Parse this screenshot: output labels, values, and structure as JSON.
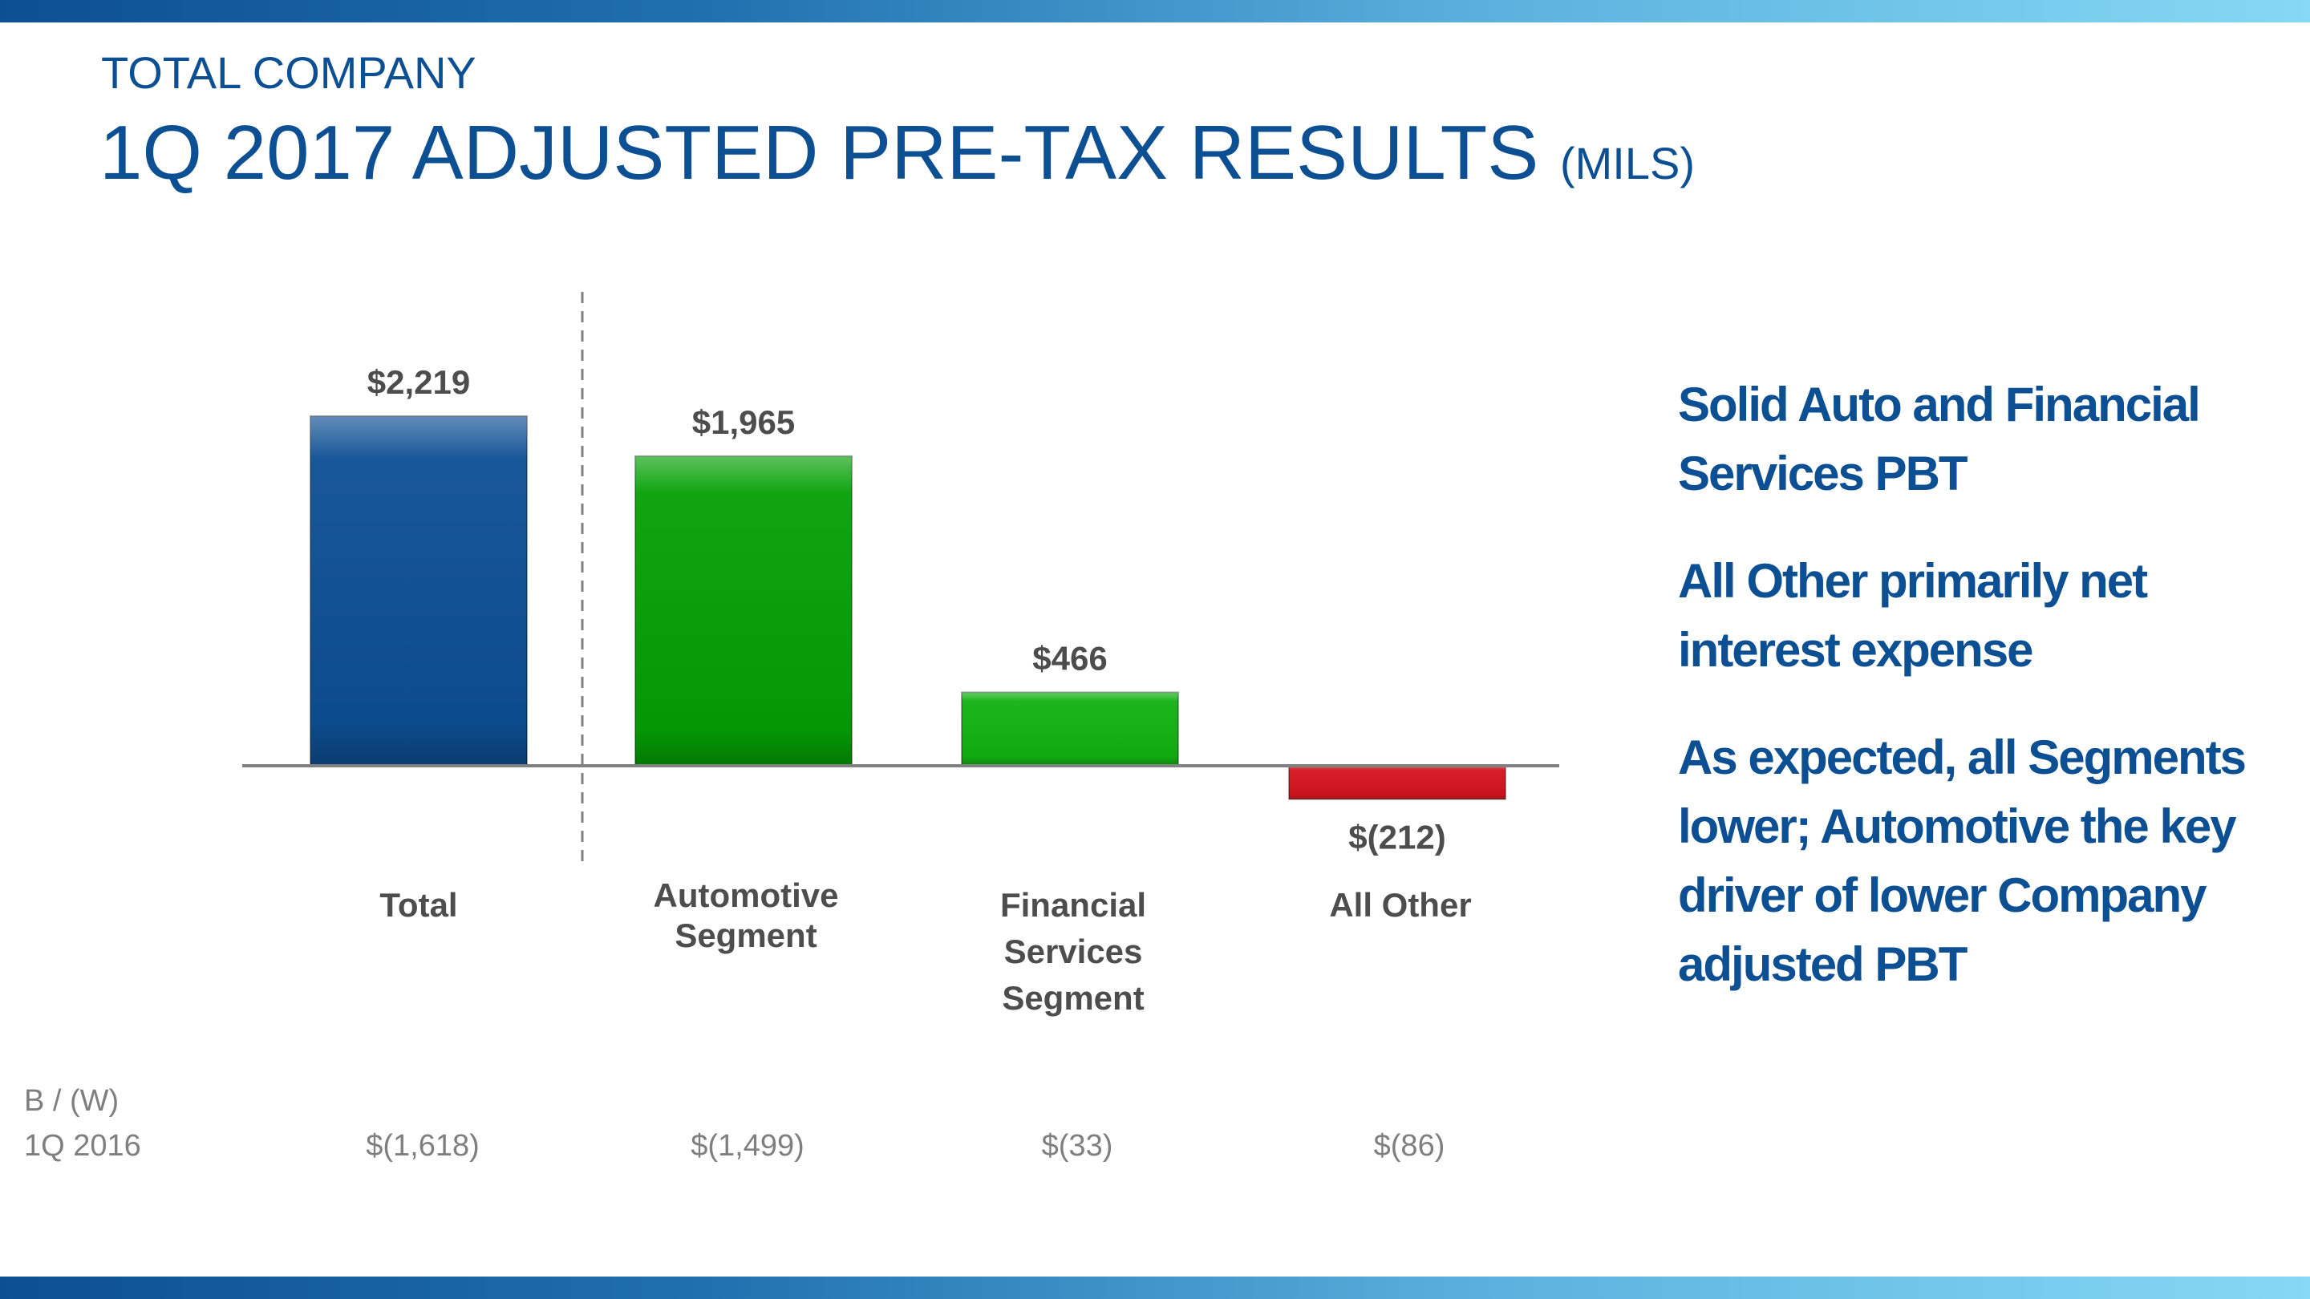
{
  "header": {
    "subtitle": "TOTAL COMPANY",
    "title": "1Q 2017 ADJUSTED PRE-TAX RESULTS",
    "unit": "(MILS)"
  },
  "chart_data": {
    "type": "bar",
    "categories": [
      "Total",
      "Automotive Segment",
      "Financial Services Segment",
      "All Other"
    ],
    "values": [
      2219,
      1965,
      466,
      -212
    ],
    "data_labels": [
      "$2,219",
      "$1,965",
      "$466",
      "$(212)"
    ],
    "colors": [
      "#0d4f93",
      "#04a004",
      "#11b211",
      "#d4141e"
    ],
    "ylim": [
      -600,
      2600
    ],
    "grid": false
  },
  "comparison": {
    "header": "B / (W)",
    "row_label": "1Q 2016",
    "values": [
      "$(1,618)",
      "$(1,499)",
      "$(33)",
      "$(86)"
    ]
  },
  "bullets": [
    "Solid Auto and Financial Services PBT",
    "All Other primarily net interest expense",
    "As expected, all Segments lower; Automotive the key driver of lower Company adjusted PBT"
  ]
}
